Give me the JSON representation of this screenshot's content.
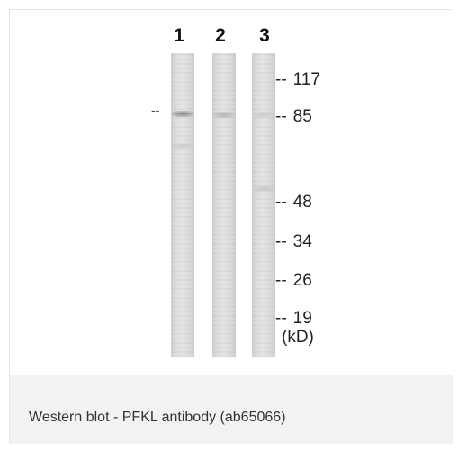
{
  "figure": {
    "lanes": [
      {
        "label": "1"
      },
      {
        "label": "2"
      },
      {
        "label": "3"
      }
    ],
    "band_pointer": "--",
    "markers": [
      {
        "dash": "--",
        "value": "117"
      },
      {
        "dash": "--",
        "value": "85"
      },
      {
        "dash": "--",
        "value": "48"
      },
      {
        "dash": "--",
        "value": "34"
      },
      {
        "dash": "--",
        "value": "26"
      },
      {
        "dash": "--",
        "value": "19"
      }
    ],
    "unit_label": "(kD)"
  },
  "caption": {
    "text": "Western blot - PFKL antibody (ab65066)"
  }
}
